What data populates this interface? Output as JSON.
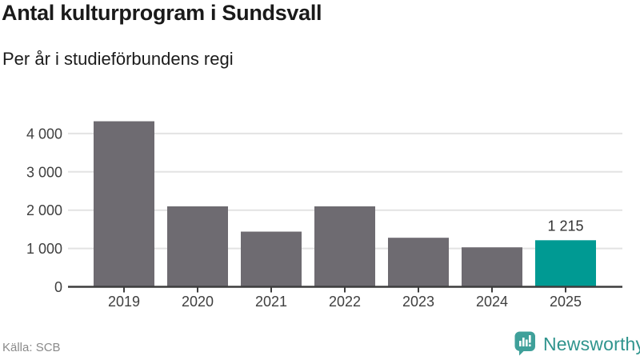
{
  "header": {
    "title": "Antal kulturprogram i Sundsvall",
    "subtitle": "Per år i studieförbundens regi"
  },
  "chart_data": {
    "type": "bar",
    "title": "Antal kulturprogram i Sundsvall",
    "subtitle": "Per år i studieförbundens regi",
    "categories": [
      "2019",
      "2020",
      "2021",
      "2022",
      "2023",
      "2024",
      "2025"
    ],
    "values": [
      4320,
      2100,
      1440,
      2100,
      1280,
      1030,
      1215
    ],
    "highlight_index": 6,
    "value_labels": {
      "6": "1 215"
    },
    "xlabel": "",
    "ylabel": "",
    "ylim": [
      0,
      4500
    ],
    "yticks": [
      0,
      1000,
      2000,
      3000,
      4000
    ],
    "ytick_labels": [
      "0",
      "1 000",
      "2 000",
      "3 000",
      "4 000"
    ],
    "grid": true,
    "legend": false,
    "bar_color": "#6e6b71",
    "highlight_color": "#009a93",
    "grid_color": "#e3e3e3",
    "axis_color": "#3d3d3d",
    "tick_label_color": "#3f3f3f",
    "value_label_color": "#333333"
  },
  "footer": {
    "source": "Källa: SCB",
    "brand": "Newsworthy",
    "brand_color": "#2f948d",
    "brand_icon": "newsworthy-speech-bubble-chart-icon",
    "brand_icon_color": "#3fa09a"
  }
}
